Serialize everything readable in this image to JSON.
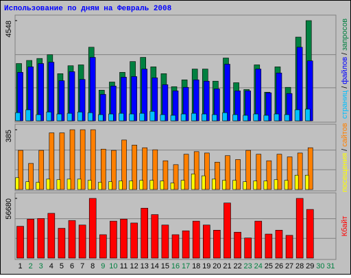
{
  "title": "Использование по дням на Февраль 2008",
  "legend_separator": "/",
  "chart_data": [
    {
      "type": "bar",
      "ylim": [
        0,
        4548
      ],
      "yticks": [
        4548
      ],
      "series": [
        {
          "name": "запросов",
          "color": "#008040",
          "values": [
            2600,
            2740,
            2830,
            3000,
            2140,
            2500,
            2540,
            3340,
            1390,
            1760,
            2200,
            2690,
            2880,
            2450,
            2140,
            1550,
            1860,
            2350,
            2350,
            1800,
            2850,
            1730,
            1420,
            2540,
            1300,
            2450,
            1520,
            3800,
            4548,
            null,
            null
          ]
        },
        {
          "name": "файлов",
          "color": "#0000ff",
          "values": [
            2200,
            2450,
            2600,
            2660,
            1820,
            2230,
            1880,
            2880,
            1200,
            1580,
            1980,
            2010,
            2350,
            1950,
            1640,
            1360,
            1520,
            1860,
            1800,
            1450,
            2570,
            1360,
            1360,
            2350,
            1270,
            2170,
            1240,
            3340,
            2720,
            null,
            null
          ]
        },
        {
          "name": "страниц",
          "color": "#00c0ff",
          "values": [
            370,
            500,
            280,
            400,
            310,
            340,
            400,
            370,
            280,
            310,
            340,
            310,
            340,
            430,
            280,
            250,
            310,
            340,
            310,
            280,
            370,
            280,
            250,
            310,
            250,
            310,
            280,
            500,
            530,
            null,
            null
          ]
        }
      ]
    },
    {
      "type": "bar",
      "ylim": [
        0,
        385
      ],
      "yticks": [
        385
      ],
      "series": [
        {
          "name": "сайтов",
          "color": "#ff8000",
          "values": [
            252,
            168,
            252,
            365,
            365,
            385,
            385,
            385,
            260,
            252,
            319,
            286,
            269,
            256,
            185,
            160,
            227,
            244,
            235,
            176,
            218,
            193,
            252,
            227,
            185,
            227,
            210,
            235,
            269,
            null,
            null
          ]
        },
        {
          "name": "посещения",
          "color": "#ffff00",
          "values": [
            76,
            50,
            46,
            67,
            63,
            67,
            67,
            59,
            46,
            50,
            55,
            55,
            59,
            59,
            55,
            42,
            59,
            100,
            88,
            67,
            59,
            59,
            50,
            55,
            55,
            63,
            59,
            92,
            92,
            null,
            null
          ]
        }
      ]
    },
    {
      "type": "bar",
      "ylim": [
        0,
        56680
      ],
      "yticks": [
        56680
      ],
      "categories": [
        "1",
        "2",
        "3",
        "4",
        "5",
        "6",
        "7",
        "8",
        "9",
        "10",
        "11",
        "12",
        "13",
        "14",
        "15",
        "16",
        "17",
        "18",
        "19",
        "20",
        "21",
        "22",
        "23",
        "24",
        "25",
        "26",
        "27",
        "28",
        "29",
        "30",
        "31"
      ],
      "category_colors": [
        "#000000",
        "#008040",
        "#008040",
        "#000000",
        "#000000",
        "#000000",
        "#000000",
        "#000000",
        "#008040",
        "#008040",
        "#000000",
        "#000000",
        "#000000",
        "#000000",
        "#000000",
        "#008040",
        "#008040",
        "#000000",
        "#000000",
        "#000000",
        "#000000",
        "#000000",
        "#008040",
        "#008040",
        "#000000",
        "#000000",
        "#000000",
        "#000000",
        "#000000",
        "#008040",
        "#008040"
      ],
      "series": [
        {
          "name": "Кбайт",
          "color": "#ff0000",
          "values": [
            30200,
            37000,
            37600,
            42500,
            28300,
            35700,
            31400,
            56680,
            22200,
            35100,
            37000,
            33300,
            47400,
            41300,
            31400,
            22200,
            25900,
            35100,
            31400,
            26500,
            52300,
            24600,
            19100,
            35100,
            22800,
            26500,
            21600,
            56680,
            46200,
            null,
            null
          ]
        }
      ]
    }
  ]
}
